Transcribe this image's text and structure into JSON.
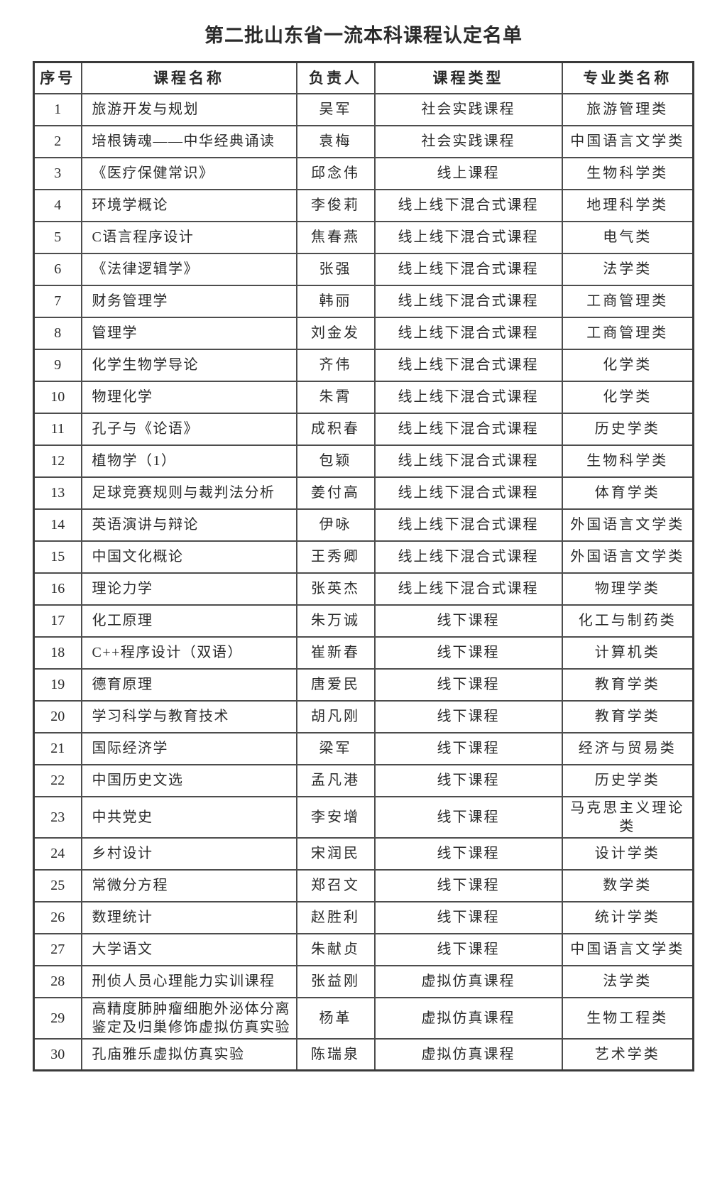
{
  "page": {
    "title": "第二批山东省一流本科课程认定名单"
  },
  "colors": {
    "text": "#2a2a2a",
    "border": "#4d4d4d",
    "outer_border": "#3a3a3a",
    "background": "#ffffff"
  },
  "table": {
    "headers": [
      "序号",
      "课程名称",
      "负责人",
      "课程类型",
      "专业类名称"
    ],
    "rows": [
      {
        "no": "1",
        "course": "旅游开发与规划",
        "leader": "吴军",
        "type": "社会实践课程",
        "category": "旅游管理类"
      },
      {
        "no": "2",
        "course": "培根铸魂——中华经典诵读",
        "leader": "袁梅",
        "type": "社会实践课程",
        "category": "中国语言文学类"
      },
      {
        "no": "3",
        "course": "《医疗保健常识》",
        "leader": "邱念伟",
        "type": "线上课程",
        "category": "生物科学类"
      },
      {
        "no": "4",
        "course": "环境学概论",
        "leader": "李俊莉",
        "type": "线上线下混合式课程",
        "category": "地理科学类"
      },
      {
        "no": "5",
        "course": "C语言程序设计",
        "leader": "焦春燕",
        "type": "线上线下混合式课程",
        "category": "电气类"
      },
      {
        "no": "6",
        "course": "《法律逻辑学》",
        "leader": "张强",
        "type": "线上线下混合式课程",
        "category": "法学类"
      },
      {
        "no": "7",
        "course": "财务管理学",
        "leader": "韩丽",
        "type": "线上线下混合式课程",
        "category": "工商管理类"
      },
      {
        "no": "8",
        "course": "管理学",
        "leader": "刘金发",
        "type": "线上线下混合式课程",
        "category": "工商管理类"
      },
      {
        "no": "9",
        "course": "化学生物学导论",
        "leader": "齐伟",
        "type": "线上线下混合式课程",
        "category": "化学类"
      },
      {
        "no": "10",
        "course": "物理化学",
        "leader": "朱霄",
        "type": "线上线下混合式课程",
        "category": "化学类"
      },
      {
        "no": "11",
        "course": "孔子与《论语》",
        "leader": "成积春",
        "type": "线上线下混合式课程",
        "category": "历史学类"
      },
      {
        "no": "12",
        "course": "植物学（1）",
        "leader": "包颖",
        "type": "线上线下混合式课程",
        "category": "生物科学类"
      },
      {
        "no": "13",
        "course": "足球竞赛规则与裁判法分析",
        "leader": "姜付高",
        "type": "线上线下混合式课程",
        "category": "体育学类"
      },
      {
        "no": "14",
        "course": "英语演讲与辩论",
        "leader": "伊咏",
        "type": "线上线下混合式课程",
        "category": "外国语言文学类"
      },
      {
        "no": "15",
        "course": "中国文化概论",
        "leader": "王秀卿",
        "type": "线上线下混合式课程",
        "category": "外国语言文学类"
      },
      {
        "no": "16",
        "course": "理论力学",
        "leader": "张英杰",
        "type": "线上线下混合式课程",
        "category": "物理学类"
      },
      {
        "no": "17",
        "course": "化工原理",
        "leader": "朱万诚",
        "type": "线下课程",
        "category": "化工与制药类"
      },
      {
        "no": "18",
        "course": "C++程序设计（双语）",
        "leader": "崔新春",
        "type": "线下课程",
        "category": "计算机类"
      },
      {
        "no": "19",
        "course": "德育原理",
        "leader": "唐爱民",
        "type": "线下课程",
        "category": "教育学类"
      },
      {
        "no": "20",
        "course": "学习科学与教育技术",
        "leader": "胡凡刚",
        "type": "线下课程",
        "category": "教育学类"
      },
      {
        "no": "21",
        "course": "国际经济学",
        "leader": "梁军",
        "type": "线下课程",
        "category": "经济与贸易类"
      },
      {
        "no": "22",
        "course": "中国历史文选",
        "leader": "孟凡港",
        "type": "线下课程",
        "category": "历史学类"
      },
      {
        "no": "23",
        "course": "中共党史",
        "leader": "李安增",
        "type": "线下课程",
        "category": "马克思主义理论类"
      },
      {
        "no": "24",
        "course": "乡村设计",
        "leader": "宋润民",
        "type": "线下课程",
        "category": "设计学类"
      },
      {
        "no": "25",
        "course": "常微分方程",
        "leader": "郑召文",
        "type": "线下课程",
        "category": "数学类"
      },
      {
        "no": "26",
        "course": "数理统计",
        "leader": "赵胜利",
        "type": "线下课程",
        "category": "统计学类"
      },
      {
        "no": "27",
        "course": "大学语文",
        "leader": "朱献贞",
        "type": "线下课程",
        "category": "中国语言文学类"
      },
      {
        "no": "28",
        "course": "刑侦人员心理能力实训课程",
        "leader": "张益刚",
        "type": "虚拟仿真课程",
        "category": "法学类"
      },
      {
        "no": "29",
        "course": "高精度肺肿瘤细胞外泌体分离鉴定及归巢修饰虚拟仿真实验",
        "leader": "杨革",
        "type": "虚拟仿真课程",
        "category": "生物工程类"
      },
      {
        "no": "30",
        "course": "孔庙雅乐虚拟仿真实验",
        "leader": "陈瑞泉",
        "type": "虚拟仿真课程",
        "category": "艺术学类"
      }
    ]
  }
}
